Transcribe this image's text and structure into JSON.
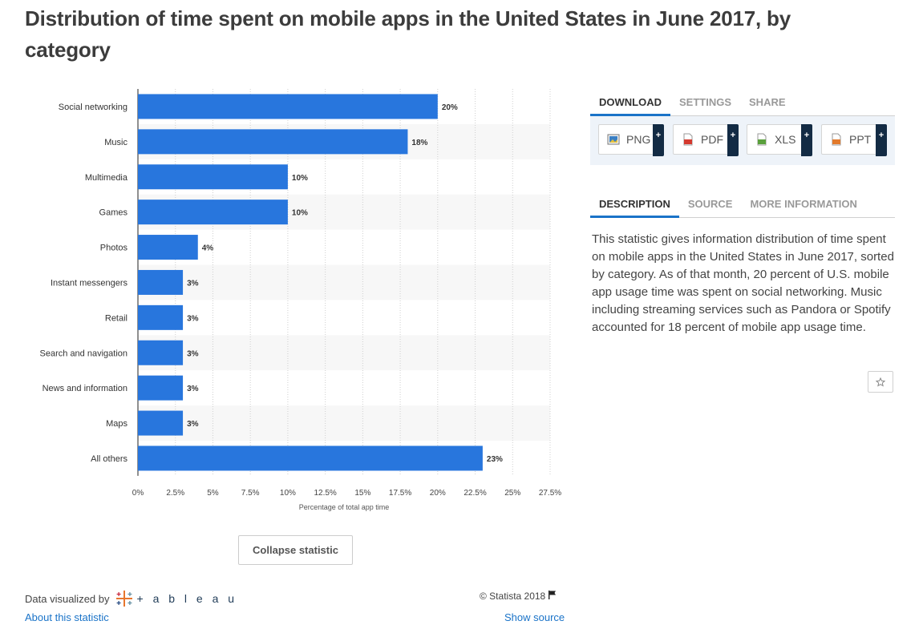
{
  "title": "Distribution of time spent on mobile apps in the United States in June 2017, by category",
  "chart_data": {
    "type": "bar",
    "orientation": "horizontal",
    "categories": [
      "Social networking",
      "Music",
      "Multimedia",
      "Games",
      "Photos",
      "Instant messengers",
      "Retail",
      "Search and navigation",
      "News and information",
      "Maps",
      "All others"
    ],
    "values": [
      20,
      18,
      10,
      10,
      4,
      3,
      3,
      3,
      3,
      3,
      23
    ],
    "data_labels": [
      "20%",
      "18%",
      "10%",
      "10%",
      "4%",
      "3%",
      "3%",
      "3%",
      "3%",
      "3%",
      "23%"
    ],
    "xticks": [
      0,
      2.5,
      5,
      7.5,
      10,
      12.5,
      15,
      17.5,
      20,
      22.5,
      25,
      27.5
    ],
    "xtick_labels": [
      "0%",
      "2.5%",
      "5%",
      "7.5%",
      "10%",
      "12.5%",
      "15%",
      "17.5%",
      "20%",
      "22.5%",
      "25%",
      "27.5%"
    ],
    "xlim": [
      0,
      27.5
    ],
    "xlabel": "Percentage of total app time",
    "ylabel": "",
    "grid": true,
    "bar_color": "#2876dd"
  },
  "collapse_label": "Collapse statistic",
  "footer": {
    "data_visualized_by": "Data visualized by",
    "tableau_word": "+ a b l e a u",
    "about": "About this statistic",
    "copyright": "© Statista 2018",
    "show_source": "Show source"
  },
  "panel": {
    "top_tabs": [
      "DOWNLOAD",
      "SETTINGS",
      "SHARE"
    ],
    "downloads": [
      {
        "label": "PNG",
        "icon": "png-file-icon",
        "color": "#3a7fc4"
      },
      {
        "label": "PDF",
        "icon": "pdf-file-icon",
        "color": "#d43a2f"
      },
      {
        "label": "XLS",
        "icon": "xls-file-icon",
        "color": "#5aa03c"
      },
      {
        "label": "PPT",
        "icon": "ppt-file-icon",
        "color": "#e27a2c"
      }
    ],
    "bottom_tabs": [
      "DESCRIPTION",
      "SOURCE",
      "MORE INFORMATION"
    ],
    "description": "This statistic gives information distribution of time spent on mobile apps in the United States in June 2017, sorted by category. As of that month, 20 percent of U.S. mobile app usage time was spent on social networking. Music including streaming services such as Pandora or Spotify accounted for 18 percent of mobile app usage time."
  },
  "colors": {
    "accent": "#1a73c8",
    "bar": "#2876dd",
    "dark": "#132b44"
  }
}
